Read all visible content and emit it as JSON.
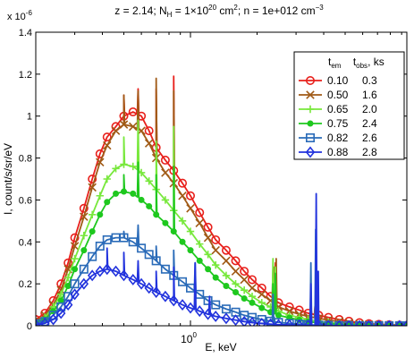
{
  "chart_data": {
    "type": "line",
    "title": {
      "text": "z = 2.14; N",
      "sub": "H",
      "mid1": " = 1×10",
      "sup": "20",
      "mid2": " cm",
      "sup2": "2",
      "mid3": "; n = 1e+012 cm",
      "sup3": "−3"
    },
    "xlabel": "E, keV",
    "ylabel": "I, count/s/sr/eV",
    "x_scale": "log",
    "xlim": [
      0.2,
      9.5
    ],
    "ylim": [
      0,
      1.4
    ],
    "y_multiplier": {
      "base": "x 10",
      "exp": "-6"
    },
    "x_ticks": [
      {
        "value": 1,
        "base": "10",
        "exp": "0"
      }
    ],
    "y_ticks": [
      "0",
      "0.2",
      "0.4",
      "0.6",
      "0.8",
      "1",
      "1.2",
      "1.4"
    ],
    "y_tick_values": [
      0,
      0.2,
      0.4,
      0.6,
      0.8,
      1,
      1.2,
      1.4
    ],
    "grid": false,
    "legend": {
      "position": "top-right",
      "header": {
        "c1": "t",
        "c1_sub": "em",
        "c2": "t",
        "c2_sub": "obs",
        "c3": ", ks"
      },
      "entries": [
        {
          "t_em": "0.10",
          "t_obs": "0.3"
        },
        {
          "t_em": "0.50",
          "t_obs": "1.6"
        },
        {
          "t_em": "0.65",
          "t_obs": "2.0"
        },
        {
          "t_em": "0.75",
          "t_obs": "2.4"
        },
        {
          "t_em": "0.82",
          "t_obs": "2.6"
        },
        {
          "t_em": "0.88",
          "t_obs": "2.8"
        }
      ]
    },
    "series": [
      {
        "color": "#e8201c",
        "marker": "circle",
        "x": [
          0.2,
          0.22,
          0.24,
          0.26,
          0.28,
          0.3,
          0.33,
          0.36,
          0.39,
          0.42,
          0.46,
          0.5,
          0.55,
          0.6,
          0.65,
          0.7,
          0.77,
          0.84,
          0.92,
          1.0,
          1.1,
          1.2,
          1.3,
          1.45,
          1.6,
          1.75,
          1.9,
          2.1,
          2.3,
          2.5,
          2.8,
          3.1,
          3.4,
          3.8,
          4.2,
          4.7,
          5.2,
          5.8,
          6.4,
          7.1,
          7.9,
          8.8,
          9.5
        ],
        "y": [
          0.03,
          0.06,
          0.12,
          0.2,
          0.3,
          0.42,
          0.56,
          0.7,
          0.82,
          0.9,
          0.95,
          1.0,
          1.02,
          1.0,
          0.93,
          0.85,
          0.79,
          0.74,
          0.68,
          0.62,
          0.54,
          0.47,
          0.41,
          0.36,
          0.31,
          0.26,
          0.22,
          0.18,
          0.14,
          0.11,
          0.09,
          0.075,
          0.06,
          0.05,
          0.04,
          0.03,
          0.022,
          0.015,
          0.01,
          0.007,
          0.005,
          0.003,
          0.002
        ],
        "spikes": [
          [
            0.5,
            1.1
          ],
          [
            0.58,
            1.13
          ],
          [
            0.7,
            1.13
          ],
          [
            0.84,
            1.19
          ],
          [
            2.36,
            0.27
          ],
          [
            2.42,
            0.3
          ],
          [
            3.66,
            0.1
          ]
        ]
      },
      {
        "color": "#a05a16",
        "marker": "x",
        "x": [
          0.2,
          0.22,
          0.24,
          0.26,
          0.28,
          0.3,
          0.33,
          0.36,
          0.39,
          0.42,
          0.46,
          0.5,
          0.55,
          0.6,
          0.65,
          0.7,
          0.77,
          0.84,
          0.92,
          1.0,
          1.1,
          1.2,
          1.3,
          1.45,
          1.6,
          1.75,
          1.9,
          2.1,
          2.3,
          2.5,
          2.8,
          3.1,
          3.4,
          3.8,
          4.2,
          4.7,
          5.2,
          5.8,
          6.4,
          7.1,
          7.9,
          8.8,
          9.5
        ],
        "y": [
          0.02,
          0.05,
          0.1,
          0.17,
          0.27,
          0.38,
          0.52,
          0.66,
          0.78,
          0.86,
          0.93,
          0.96,
          0.95,
          0.93,
          0.87,
          0.8,
          0.73,
          0.68,
          0.62,
          0.56,
          0.49,
          0.42,
          0.36,
          0.31,
          0.26,
          0.22,
          0.18,
          0.15,
          0.12,
          0.09,
          0.07,
          0.055,
          0.045,
          0.035,
          0.027,
          0.02,
          0.014,
          0.009,
          0.006,
          0.004,
          0.003,
          0.002,
          0.001
        ],
        "spikes": [
          [
            0.5,
            1.1
          ],
          [
            0.58,
            1.12
          ],
          [
            0.7,
            1.18
          ],
          [
            0.84,
            1.12
          ],
          [
            2.38,
            0.28
          ],
          [
            2.44,
            0.32
          ],
          [
            3.66,
            0.1
          ]
        ]
      },
      {
        "color": "#78e83c",
        "marker": "plus",
        "x": [
          0.2,
          0.22,
          0.24,
          0.26,
          0.28,
          0.3,
          0.33,
          0.36,
          0.39,
          0.42,
          0.46,
          0.5,
          0.55,
          0.6,
          0.65,
          0.7,
          0.77,
          0.84,
          0.92,
          1.0,
          1.1,
          1.2,
          1.3,
          1.45,
          1.6,
          1.75,
          1.9,
          2.1,
          2.3,
          2.5,
          2.8,
          3.1,
          3.4,
          3.8,
          4.2,
          4.7,
          5.2,
          5.8,
          6.4,
          7.1,
          7.9,
          8.8,
          9.5
        ],
        "y": [
          0.02,
          0.04,
          0.09,
          0.15,
          0.23,
          0.32,
          0.43,
          0.53,
          0.62,
          0.7,
          0.75,
          0.77,
          0.76,
          0.73,
          0.69,
          0.65,
          0.6,
          0.55,
          0.5,
          0.45,
          0.39,
          0.34,
          0.29,
          0.24,
          0.2,
          0.17,
          0.14,
          0.11,
          0.09,
          0.07,
          0.05,
          0.04,
          0.03,
          0.022,
          0.016,
          0.011,
          0.008,
          0.005,
          0.003,
          0.002,
          0.001,
          0.001,
          0.001
        ],
        "spikes": [
          [
            0.5,
            0.9
          ],
          [
            0.58,
            0.98
          ],
          [
            0.7,
            0.88
          ],
          [
            0.84,
            0.95
          ],
          [
            2.36,
            0.32
          ],
          [
            2.42,
            0.28
          ]
        ]
      },
      {
        "color": "#1ec81e",
        "marker": "dot",
        "x": [
          0.2,
          0.22,
          0.24,
          0.26,
          0.28,
          0.3,
          0.33,
          0.36,
          0.39,
          0.42,
          0.46,
          0.5,
          0.55,
          0.6,
          0.65,
          0.7,
          0.77,
          0.84,
          0.92,
          1.0,
          1.1,
          1.2,
          1.3,
          1.45,
          1.6,
          1.75,
          1.9,
          2.1,
          2.3,
          2.5,
          2.8,
          3.1,
          3.4,
          3.8,
          4.2,
          4.7,
          5.2,
          5.8,
          6.4,
          7.1,
          7.9,
          8.8,
          9.5
        ],
        "y": [
          0.015,
          0.03,
          0.07,
          0.12,
          0.19,
          0.27,
          0.36,
          0.45,
          0.53,
          0.59,
          0.63,
          0.64,
          0.63,
          0.6,
          0.57,
          0.53,
          0.49,
          0.45,
          0.4,
          0.36,
          0.31,
          0.27,
          0.23,
          0.19,
          0.16,
          0.13,
          0.11,
          0.085,
          0.065,
          0.05,
          0.038,
          0.028,
          0.02,
          0.014,
          0.01,
          0.007,
          0.005,
          0.003,
          0.002,
          0.001,
          0.001,
          0.0,
          0.0
        ],
        "spikes": [
          [
            0.5,
            0.72
          ],
          [
            0.58,
            0.78
          ],
          [
            0.7,
            0.72
          ],
          [
            0.84,
            0.76
          ],
          [
            2.36,
            0.2
          ],
          [
            2.42,
            0.25
          ]
        ]
      },
      {
        "color": "#2a6bb8",
        "marker": "square",
        "x": [
          0.2,
          0.22,
          0.24,
          0.26,
          0.28,
          0.3,
          0.33,
          0.36,
          0.39,
          0.42,
          0.46,
          0.5,
          0.55,
          0.6,
          0.65,
          0.7,
          0.77,
          0.84,
          0.92,
          1.0,
          1.1,
          1.2,
          1.3,
          1.45,
          1.6,
          1.75,
          1.9,
          2.1,
          2.3,
          2.5,
          2.8,
          3.1,
          3.4,
          3.8,
          4.2,
          4.7,
          5.2,
          5.8,
          6.4,
          7.1,
          7.9,
          8.8,
          9.5
        ],
        "y": [
          0.01,
          0.02,
          0.05,
          0.09,
          0.14,
          0.2,
          0.27,
          0.33,
          0.38,
          0.41,
          0.42,
          0.42,
          0.4,
          0.37,
          0.34,
          0.31,
          0.27,
          0.24,
          0.21,
          0.18,
          0.15,
          0.12,
          0.1,
          0.08,
          0.065,
          0.05,
          0.04,
          0.03,
          0.022,
          0.016,
          0.011,
          0.008,
          0.005,
          0.003,
          0.002,
          0.001,
          0.001,
          0.0,
          0.0,
          0.0,
          0.0,
          0.0,
          0.0
        ],
        "spikes": [
          [
            0.5,
            0.45
          ],
          [
            0.58,
            0.48
          ],
          [
            0.7,
            0.38
          ],
          [
            0.84,
            0.36
          ],
          [
            1.05,
            0.3
          ],
          [
            2.36,
            0.15
          ],
          [
            3.5,
            0.3
          ],
          [
            3.68,
            0.46
          ]
        ]
      },
      {
        "color": "#2233dd",
        "marker": "diamond",
        "x": [
          0.2,
          0.22,
          0.24,
          0.26,
          0.28,
          0.3,
          0.33,
          0.36,
          0.39,
          0.42,
          0.46,
          0.5,
          0.55,
          0.6,
          0.65,
          0.7,
          0.77,
          0.84,
          0.92,
          1.0,
          1.1,
          1.2,
          1.3,
          1.45,
          1.6,
          1.75,
          1.9,
          2.1,
          2.3,
          2.5,
          2.8,
          3.1,
          3.4,
          3.8,
          4.2,
          4.7,
          5.2,
          5.8,
          6.4,
          7.1,
          7.9,
          8.8,
          9.5
        ],
        "y": [
          0.005,
          0.012,
          0.03,
          0.06,
          0.1,
          0.15,
          0.2,
          0.24,
          0.26,
          0.27,
          0.26,
          0.24,
          0.22,
          0.2,
          0.18,
          0.16,
          0.14,
          0.12,
          0.1,
          0.085,
          0.07,
          0.055,
          0.045,
          0.035,
          0.027,
          0.02,
          0.015,
          0.011,
          0.008,
          0.005,
          0.004,
          0.003,
          0.002,
          0.001,
          0.001,
          0.0,
          0.0,
          0.0,
          0.0,
          0.0,
          0.0,
          0.0,
          0.0
        ],
        "spikes": [
          [
            0.42,
            0.37
          ],
          [
            0.5,
            0.35
          ],
          [
            0.58,
            0.31
          ],
          [
            0.7,
            0.26
          ],
          [
            0.84,
            0.28
          ],
          [
            1.05,
            0.3
          ],
          [
            1.22,
            0.14
          ],
          [
            3.5,
            0.2
          ],
          [
            3.7,
            0.63
          ],
          [
            3.78,
            0.26
          ]
        ]
      }
    ]
  }
}
